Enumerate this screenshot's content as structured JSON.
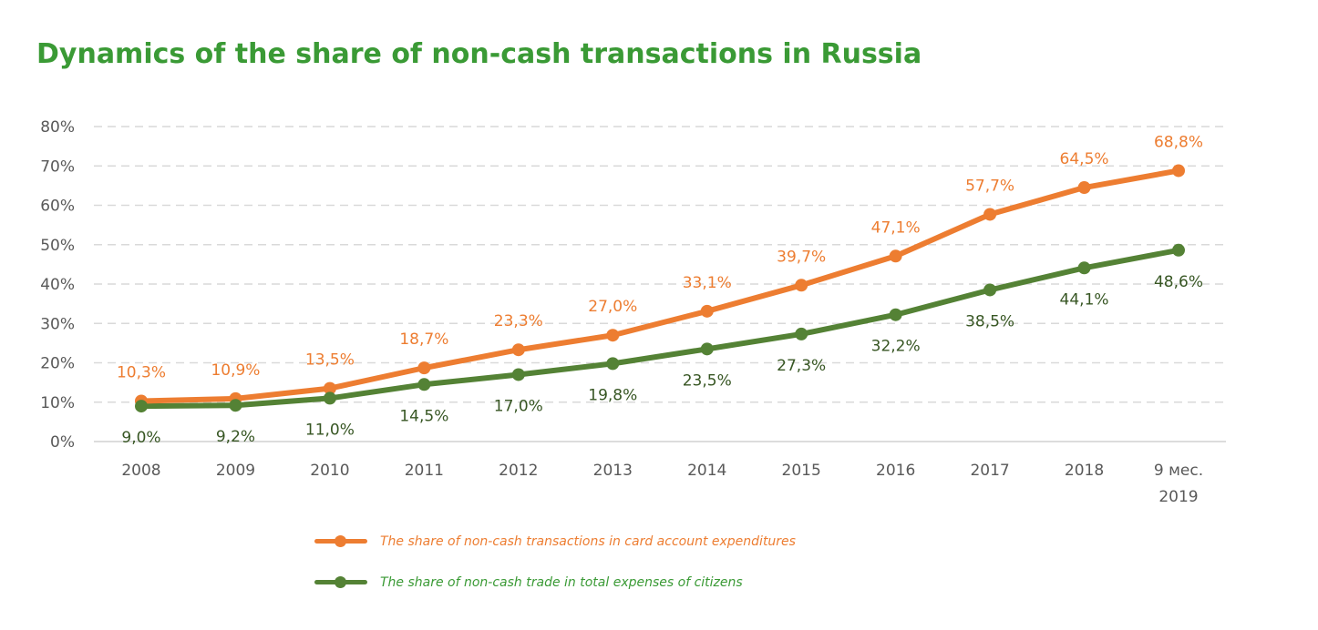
{
  "chart_data": {
    "type": "line",
    "title": "Dynamics of the share of non-cash transactions in Russia",
    "xlabel": "",
    "ylabel": "",
    "categories": [
      "2008",
      "2009",
      "2010",
      "2011",
      "2012",
      "2013",
      "2014",
      "2015",
      "2016",
      "2017",
      "2018",
      "9 мес.\n2019"
    ],
    "ylim": [
      0,
      80
    ],
    "yticks": [
      "0%",
      "10%",
      "20%",
      "30%",
      "40%",
      "50%",
      "60%",
      "70%",
      "80%"
    ],
    "grid": true,
    "legend_position": "bottom",
    "series": [
      {
        "name": "The share of non-cash transactions in card account expenditures",
        "color": "#ed7d31",
        "label_color": "#ed7d31",
        "label_position": "above",
        "values": [
          10.3,
          10.9,
          13.5,
          18.7,
          23.3,
          27.0,
          33.1,
          39.7,
          47.1,
          57.7,
          64.5,
          68.8
        ],
        "labels": [
          "10,3%",
          "10,9%",
          "13,5%",
          "18,7%",
          "23,3%",
          "27,0%",
          "33,1%",
          "39,7%",
          "47,1%",
          "57,7%",
          "64,5%",
          "68,8%"
        ]
      },
      {
        "name": "The share of non-cash trade in total expenses of citizens",
        "color": "#548235",
        "label_color": "#375623",
        "label_position": "below",
        "values": [
          9.0,
          9.2,
          11.0,
          14.5,
          17.0,
          19.8,
          23.5,
          27.3,
          32.2,
          38.5,
          44.1,
          48.6
        ],
        "labels": [
          "9,0%",
          "9,2%",
          "11,0%",
          "14,5%",
          "17,0%",
          "19,8%",
          "23,5%",
          "27,3%",
          "32,2%",
          "38,5%",
          "44,1%",
          "48,6%"
        ]
      }
    ]
  },
  "legend": {
    "items": [
      {
        "label": "The share of non-cash transactions in card account expenditures",
        "text_color": "#ed7d31"
      },
      {
        "label": "The share of non-cash trade in total expenses of citizens",
        "text_color": "#3a9a35"
      }
    ]
  }
}
